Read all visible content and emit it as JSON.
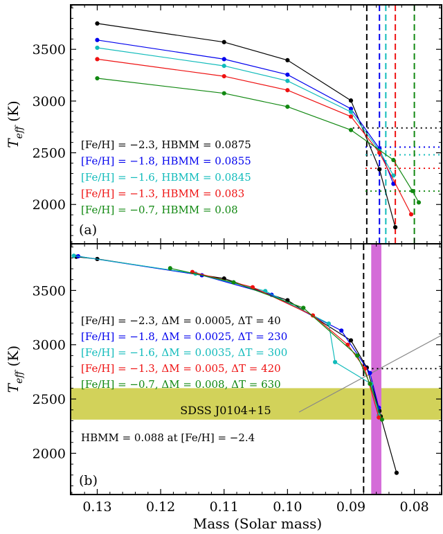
{
  "colors": {
    "black": "#000000",
    "blue": "#0000ee",
    "cyan": "#11bbbb",
    "red": "#ee1111",
    "green": "#118811",
    "band": "#d2d25a",
    "mag": "#d46cd8"
  },
  "chart_data": {
    "type": "line",
    "xlabel": "Mass (Solar mass)",
    "ylabel_base": "T",
    "ylabel_sub": "eff",
    "ylabel_unit": " (K)",
    "x_reversed": true,
    "xlim": [
      0.1342,
      0.0757
    ],
    "xticks": [
      0.13,
      0.12,
      0.11,
      0.1,
      0.09,
      0.08
    ],
    "xtick_labels": [
      "0.13",
      "0.12",
      "0.11",
      "0.10",
      "0.09",
      "0.08"
    ],
    "panels": [
      {
        "id": "a",
        "label": "(a)",
        "ylim": [
          1620,
          3930
        ],
        "yticks": [
          2000,
          2500,
          3000,
          3500
        ],
        "ytick_labels": [
          "2000",
          "2500",
          "3000",
          "3500"
        ],
        "series": [
          {
            "color": "black",
            "label": "[Fe/H] = −2.3, HBMM = 0.0875",
            "hbmm": 0.0875,
            "teff_dotted": 2740,
            "dotted_from": 0.0897,
            "points": [
              [
                0.13,
                3750
              ],
              [
                0.11,
                3570
              ],
              [
                0.1,
                3395
              ],
              [
                0.09,
                3005
              ],
              [
                0.0855,
                2340
              ],
              [
                0.083,
                1780
              ]
            ]
          },
          {
            "color": "blue",
            "label": "[Fe/H] = −1.8, HBMM = 0.0855",
            "hbmm": 0.0855,
            "teff_dotted": 2555,
            "dotted_from": 0.0877,
            "points": [
              [
                0.13,
                3590
              ],
              [
                0.11,
                3405
              ],
              [
                0.1,
                3255
              ],
              [
                0.09,
                2925
              ],
              [
                0.0855,
                2540
              ],
              [
                0.0833,
                2200
              ]
            ]
          },
          {
            "color": "cyan",
            "label": "[Fe/H] = −1.6, HBMM = 0.0845",
            "hbmm": 0.0845,
            "teff_dotted": 2480,
            "dotted_from": 0.0877,
            "points": [
              [
                0.13,
                3515
              ],
              [
                0.11,
                3340
              ],
              [
                0.1,
                3195
              ],
              [
                0.09,
                2895
              ],
              [
                0.0855,
                2520
              ],
              [
                0.0833,
                2280
              ]
            ]
          },
          {
            "color": "red",
            "label": "[Fe/H] = −1.3, HBMM = 0.083",
            "hbmm": 0.083,
            "teff_dotted": 2350,
            "dotted_from": 0.0877,
            "points": [
              [
                0.13,
                3405
              ],
              [
                0.11,
                3240
              ],
              [
                0.1,
                3105
              ],
              [
                0.09,
                2850
              ],
              [
                0.0855,
                2500
              ],
              [
                0.0805,
                1905
              ]
            ]
          },
          {
            "color": "green",
            "label": "[Fe/H] = −0.7, HBMM = 0.08",
            "hbmm": 0.08,
            "teff_dotted": 2130,
            "dotted_from": 0.0877,
            "points": [
              [
                0.13,
                3220
              ],
              [
                0.11,
                3075
              ],
              [
                0.1,
                2945
              ],
              [
                0.09,
                2720
              ],
              [
                0.0833,
                2430
              ],
              [
                0.0803,
                2130
              ],
              [
                0.0793,
                2020
              ]
            ]
          }
        ]
      },
      {
        "id": "b",
        "label": "(b)",
        "ylim": [
          1620,
          3930
        ],
        "yticks": [
          2000,
          2500,
          3000,
          3500
        ],
        "ytick_labels": [
          "2000",
          "2500",
          "3000",
          "3500"
        ],
        "hbmm_line": 0.088,
        "dotted_teff": 2780,
        "dotted_from": 0.0882,
        "band_teff": [
          2310,
          2600
        ],
        "band_label": "SDSS J0104+15",
        "mag_band_mass": [
          0.0868,
          0.0852
        ],
        "note": "HBMM = 0.088 at [Fe/H] = −2.4",
        "series": [
          {
            "color": "black",
            "label": "[Fe/H] = −2.3, ΔM = 0.0005, ΔT = 40",
            "points": [
              [
                0.1333,
                3810
              ],
              [
                0.13,
                3790
              ],
              [
                0.11,
                3610
              ],
              [
                0.1,
                3410
              ],
              [
                0.09,
                3040
              ],
              [
                0.0875,
                2790
              ],
              [
                0.0855,
                2390
              ],
              [
                0.0853,
                2340
              ],
              [
                0.0828,
                1820
              ]
            ]
          },
          {
            "color": "blue",
            "label": "[Fe/H] = −1.8, ΔM = 0.0025, ΔT = 230",
            "points": [
              [
                0.133,
                3815
              ],
              [
                0.1135,
                3640
              ],
              [
                0.1025,
                3460
              ],
              [
                0.0915,
                3130
              ],
              [
                0.087,
                2740
              ],
              [
                0.0856,
                2420
              ]
            ]
          },
          {
            "color": "cyan",
            "label": "[Fe/H] = −1.6, ΔM = 0.0035, ΔT = 300",
            "points": [
              [
                0.1337,
                3820
              ],
              [
                0.1145,
                3655
              ],
              [
                0.1035,
                3495
              ],
              [
                0.0935,
                3195
              ],
              [
                0.0925,
                2840
              ],
              [
                0.0868,
                2640
              ],
              [
                0.0856,
                2350
              ]
            ]
          },
          {
            "color": "red",
            "label": "[Fe/H] = −1.3, ΔM = 0.005, ΔT = 420",
            "points": [
              [
                0.115,
                3670
              ],
              [
                0.1055,
                3530
              ],
              [
                0.096,
                3270
              ],
              [
                0.0905,
                3000
              ],
              [
                0.0878,
                2780
              ],
              [
                0.0856,
                2330
              ]
            ]
          },
          {
            "color": "green",
            "label": "[Fe/H] = −0.7, ΔM = 0.008, ΔT = 630",
            "points": [
              [
                0.1185,
                3705
              ],
              [
                0.1085,
                3575
              ],
              [
                0.0975,
                3340
              ],
              [
                0.089,
                2900
              ],
              [
                0.087,
                2640
              ],
              [
                0.0851,
                2310
              ]
            ]
          }
        ]
      }
    ]
  }
}
